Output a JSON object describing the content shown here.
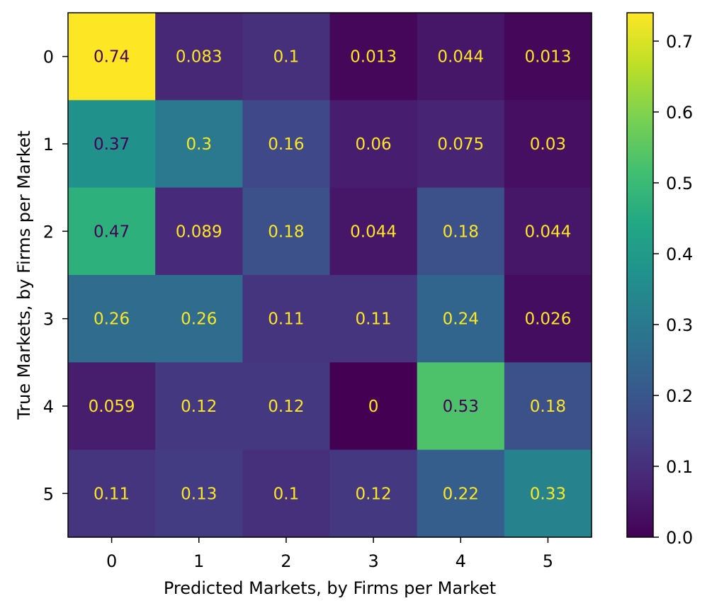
{
  "chart_data": {
    "type": "heatmap",
    "title": "",
    "xlabel": "Predicted Markets, by Firms per Market",
    "ylabel": "True Markets, by Firms per Market",
    "x_categories": [
      "0",
      "1",
      "2",
      "3",
      "4",
      "5"
    ],
    "y_categories": [
      "0",
      "1",
      "2",
      "3",
      "4",
      "5"
    ],
    "values": [
      [
        0.74,
        0.083,
        0.1,
        0.013,
        0.044,
        0.013
      ],
      [
        0.37,
        0.3,
        0.16,
        0.06,
        0.075,
        0.03
      ],
      [
        0.47,
        0.089,
        0.18,
        0.044,
        0.18,
        0.044
      ],
      [
        0.26,
        0.26,
        0.11,
        0.11,
        0.24,
        0.026
      ],
      [
        0.059,
        0.12,
        0.12,
        0,
        0.53,
        0.18
      ],
      [
        0.11,
        0.13,
        0.1,
        0.12,
        0.22,
        0.33
      ]
    ],
    "cell_labels": [
      [
        "0.74",
        "0.083",
        "0.1",
        "0.013",
        "0.044",
        "0.013"
      ],
      [
        "0.37",
        "0.3",
        "0.16",
        "0.06",
        "0.075",
        "0.03"
      ],
      [
        "0.47",
        "0.089",
        "0.18",
        "0.044",
        "0.18",
        "0.044"
      ],
      [
        "0.26",
        "0.26",
        "0.11",
        "0.11",
        "0.24",
        "0.026"
      ],
      [
        "0.059",
        "0.12",
        "0.12",
        "0",
        "0.53",
        "0.18"
      ],
      [
        "0.11",
        "0.13",
        "0.1",
        "0.12",
        "0.22",
        "0.33"
      ]
    ],
    "colormap": "viridis",
    "vmin": 0,
    "vmax": 0.74,
    "colorbar_ticks": [
      0.0,
      0.1,
      0.2,
      0.3,
      0.4,
      0.5,
      0.6,
      0.7
    ],
    "colorbar_tick_labels": [
      "0.0",
      "0.1",
      "0.2",
      "0.3",
      "0.4",
      "0.5",
      "0.6",
      "0.7"
    ],
    "label_color_dark": "#440154",
    "label_color_light": "#fde725",
    "grid": false
  }
}
